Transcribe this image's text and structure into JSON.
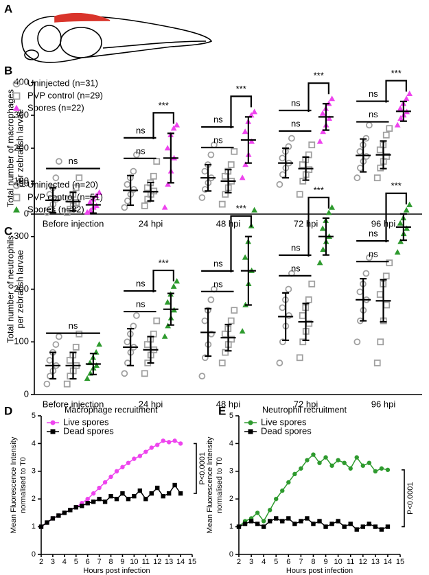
{
  "panel_a": {
    "label": "A"
  },
  "chart_data": [
    {
      "type": "dot",
      "panel": "B",
      "y_label": [
        "Total number of macrophages",
        "per zebrafish larvae"
      ],
      "categories": [
        "Before injection",
        "24 hpi",
        "48 hpi",
        "72 hpi",
        "96 hpi"
      ],
      "ylim": [
        0,
        400
      ],
      "yticks": [
        0,
        100,
        200,
        300,
        400
      ],
      "series": [
        {
          "name": "Uninjected (n=31)",
          "marker": "circle",
          "color": "#a0a0a0",
          "means": [
            42,
            72,
            110,
            155,
            178
          ],
          "sd": [
            38,
            45,
            40,
            45,
            50
          ],
          "points": [
            [
              5,
              15,
              30,
              45,
              60,
              80,
              110,
              160
            ],
            [
              20,
              40,
              60,
              75,
              90,
              110,
              130,
              180
            ],
            [
              50,
              75,
              95,
              110,
              130,
              150,
              180,
              210
            ],
            [
              90,
              120,
              140,
              155,
              170,
              190,
              205,
              230
            ],
            [
              110,
              140,
              160,
              175,
              190,
              210,
              230,
              270
            ]
          ]
        },
        {
          "name": "PVP control (n=29)",
          "marker": "square",
          "color": "#a0a0a0",
          "means": [
            38,
            68,
            100,
            138,
            180
          ],
          "sd": [
            28,
            28,
            35,
            35,
            42
          ],
          "points": [
            [
              5,
              15,
              25,
              35,
              45,
              60,
              80,
              110
            ],
            [
              25,
              45,
              60,
              70,
              80,
              95,
              115,
              160
            ],
            [
              30,
              60,
              80,
              100,
              115,
              130,
              150,
              190
            ],
            [
              60,
              100,
              120,
              135,
              150,
              165,
              180,
              210
            ],
            [
              110,
              140,
              160,
              175,
              195,
              210,
              240,
              260
            ]
          ]
        },
        {
          "name": "Spores (n=22)",
          "marker": "triangle",
          "color": "#ee44ee",
          "means": [
            28,
            170,
            225,
            295,
            312
          ],
          "sd": [
            25,
            75,
            70,
            40,
            30
          ],
          "points": [
            [
              5,
              10,
              20,
              25,
              35,
              45,
              55,
              65
            ],
            [
              20,
              90,
              130,
              170,
              200,
              240,
              260,
              270
            ],
            [
              110,
              150,
              180,
              220,
              250,
              280,
              300,
              310
            ],
            [
              220,
              250,
              270,
              290,
              305,
              320,
              335,
              350
            ],
            [
              270,
              290,
              300,
              310,
              320,
              335,
              350,
              365
            ]
          ]
        }
      ],
      "significance": [
        [
          "ns"
        ],
        [
          "ns",
          "ns",
          "***"
        ],
        [
          "ns",
          "ns",
          "***"
        ],
        [
          "ns",
          "ns",
          "***"
        ],
        [
          "ns",
          "ns",
          "***"
        ]
      ]
    },
    {
      "type": "dot",
      "panel": "C",
      "y_label": [
        "Total number of neutrophils",
        "per zebrafish larvae"
      ],
      "categories": [
        "Before injection",
        "24 hpi",
        "48 hpi",
        "72 hpi",
        "96 hpi"
      ],
      "ylim": [
        0,
        400
      ],
      "yticks": [
        0,
        100,
        200,
        300,
        400
      ],
      "series": [
        {
          "name": "Uninjected (n=20)",
          "marker": "circle",
          "color": "#a0a0a0",
          "means": [
            55,
            90,
            118,
            148,
            180
          ],
          "sd": [
            25,
            35,
            45,
            45,
            40
          ],
          "points": [
            [
              20,
              35,
              45,
              55,
              65,
              80,
              95,
              110
            ],
            [
              40,
              60,
              80,
              90,
              100,
              115,
              130,
              150
            ],
            [
              35,
              70,
              95,
              115,
              140,
              160,
              180,
              200
            ],
            [
              60,
              100,
              130,
              150,
              165,
              180,
              200,
              230
            ],
            [
              100,
              140,
              160,
              180,
              195,
              210,
              230,
              260
            ]
          ]
        },
        {
          "name": "PVP control (n=51)",
          "marker": "square",
          "color": "#a0a0a0",
          "means": [
            55,
            85,
            108,
            138,
            178
          ],
          "sd": [
            25,
            25,
            25,
            35,
            40
          ],
          "points": [
            [
              20,
              35,
              45,
              55,
              65,
              75,
              90,
              115
            ],
            [
              40,
              60,
              75,
              85,
              95,
              105,
              115,
              140
            ],
            [
              60,
              80,
              95,
              105,
              115,
              125,
              140,
              160
            ],
            [
              70,
              100,
              120,
              135,
              150,
              165,
              180,
              210
            ],
            [
              60,
              100,
              140,
              170,
              190,
              210,
              225,
              250
            ]
          ]
        },
        {
          "name": "Spores (n=32)",
          "marker": "triangle",
          "color": "#2e9a2e",
          "means": [
            58,
            162,
            235,
            300,
            318
          ],
          "sd": [
            20,
            30,
            65,
            35,
            25
          ],
          "points": [
            [
              30,
              40,
              50,
              55,
              60,
              70,
              80,
              95
            ],
            [
              110,
              130,
              145,
              160,
              175,
              190,
              205,
              215
            ],
            [
              120,
              170,
              210,
              235,
              260,
              290,
              320,
              350
            ],
            [
              250,
              275,
              290,
              300,
              315,
              330,
              345,
              355
            ],
            [
              270,
              290,
              305,
              315,
              325,
              335,
              350,
              360
            ]
          ]
        }
      ],
      "significance": [
        [
          "ns"
        ],
        [
          "ns",
          "ns",
          "***"
        ],
        [
          "ns",
          "ns",
          "***"
        ],
        [
          "ns",
          "ns",
          "***"
        ],
        [
          "ns",
          "ns",
          "***"
        ]
      ]
    },
    {
      "type": "line",
      "panel": "D",
      "title": "Macrophage recruitment",
      "y_label": [
        "Mean Fluorescence Intensity",
        "normalised to T0"
      ],
      "x_label": "Hours post infection",
      "xlim": [
        2,
        15
      ],
      "xticks": [
        2,
        3,
        4,
        5,
        6,
        7,
        8,
        9,
        10,
        11,
        12,
        13,
        14,
        15
      ],
      "ylim": [
        0,
        5
      ],
      "yticks": [
        0,
        1,
        2,
        3,
        4,
        5
      ],
      "x": [
        2,
        2.5,
        3,
        3.5,
        4,
        4.5,
        5,
        5.5,
        6,
        6.5,
        7,
        7.5,
        8,
        8.5,
        9,
        9.5,
        10,
        10.5,
        11,
        11.5,
        12,
        12.5,
        13,
        13.5,
        14
      ],
      "series": [
        {
          "name": "Live spores",
          "marker": "circle",
          "color": "#ee44ee",
          "values": [
            1.0,
            1.15,
            1.3,
            1.4,
            1.5,
            1.6,
            1.7,
            1.85,
            2.0,
            2.2,
            2.4,
            2.6,
            2.8,
            3.0,
            3.15,
            3.3,
            3.45,
            3.55,
            3.7,
            3.85,
            3.95,
            4.1,
            4.05,
            4.1,
            4.0
          ]
        },
        {
          "name": "Dead spores",
          "marker": "square",
          "color": "#000000",
          "values": [
            1.0,
            1.15,
            1.3,
            1.4,
            1.5,
            1.6,
            1.7,
            1.75,
            1.85,
            1.9,
            2.0,
            1.9,
            2.1,
            2.0,
            2.2,
            2.0,
            2.1,
            2.3,
            2.0,
            2.2,
            2.4,
            2.1,
            2.2,
            2.5,
            2.2
          ]
        }
      ],
      "annotation": "P<0.0001"
    },
    {
      "type": "line",
      "panel": "E",
      "title": "Neutrophil recruitment",
      "y_label": [
        "Mean Fluorescence Intensity",
        "normalised to T0"
      ],
      "x_label": "Hours post infection",
      "xlim": [
        2,
        15
      ],
      "xticks": [
        2,
        3,
        4,
        5,
        6,
        7,
        8,
        9,
        10,
        11,
        12,
        13,
        14,
        15
      ],
      "ylim": [
        0,
        5
      ],
      "yticks": [
        0,
        1,
        2,
        3,
        4,
        5
      ],
      "x": [
        2,
        2.5,
        3,
        3.5,
        4,
        4.5,
        5,
        5.5,
        6,
        6.5,
        7,
        7.5,
        8,
        8.5,
        9,
        9.5,
        10,
        10.5,
        11,
        11.5,
        12,
        12.5,
        13,
        13.5,
        14
      ],
      "series": [
        {
          "name": "Live spores",
          "marker": "circle",
          "color": "#2e9a2e",
          "values": [
            1.0,
            1.2,
            1.3,
            1.5,
            1.2,
            1.6,
            2.0,
            2.3,
            2.6,
            2.9,
            3.1,
            3.4,
            3.6,
            3.3,
            3.5,
            3.2,
            3.4,
            3.3,
            3.1,
            3.5,
            3.2,
            3.3,
            3.0,
            3.1,
            3.05
          ]
        },
        {
          "name": "Dead spores",
          "marker": "square",
          "color": "#000000",
          "values": [
            1.0,
            1.1,
            1.2,
            1.1,
            1.0,
            1.2,
            1.3,
            1.2,
            1.3,
            1.1,
            1.2,
            1.3,
            1.1,
            1.2,
            1.0,
            1.1,
            1.2,
            1.0,
            1.1,
            0.9,
            1.0,
            1.1,
            1.0,
            0.9,
            1.0
          ]
        }
      ],
      "annotation": "P<0.0001"
    }
  ]
}
